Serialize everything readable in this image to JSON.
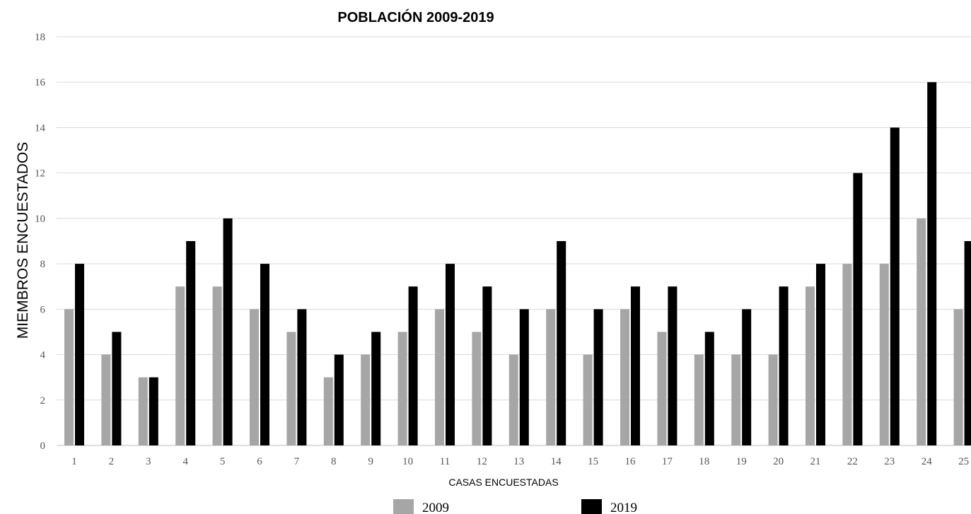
{
  "chart_data": {
    "type": "bar",
    "title": "POBLACIÓN 2009-2019",
    "xlabel": "CASAS ENCUESTADAS",
    "ylabel": "MIEMBROS ENCUESTADOS",
    "ylim": [
      0,
      18
    ],
    "yticks": [
      0,
      2,
      4,
      6,
      8,
      10,
      12,
      14,
      16,
      18
    ],
    "grid": true,
    "legend_position": "bottom",
    "categories": [
      "1",
      "2",
      "3",
      "4",
      "5",
      "6",
      "7",
      "8",
      "9",
      "10",
      "11",
      "12",
      "13",
      "14",
      "15",
      "16",
      "17",
      "18",
      "19",
      "20",
      "21",
      "22",
      "23",
      "24",
      "25"
    ],
    "series": [
      {
        "name": "2009",
        "color": "#a6a6a6",
        "values": [
          6,
          4,
          3,
          7,
          7,
          6,
          5,
          3,
          4,
          5,
          6,
          5,
          4,
          6,
          4,
          6,
          5,
          4,
          4,
          4,
          7,
          8,
          8,
          10,
          6
        ]
      },
      {
        "name": "2019",
        "color": "#000000",
        "values": [
          8,
          5,
          3,
          9,
          10,
          8,
          6,
          4,
          5,
          7,
          8,
          7,
          6,
          9,
          6,
          7,
          7,
          5,
          6,
          7,
          8,
          12,
          14,
          16,
          9
        ]
      }
    ]
  }
}
